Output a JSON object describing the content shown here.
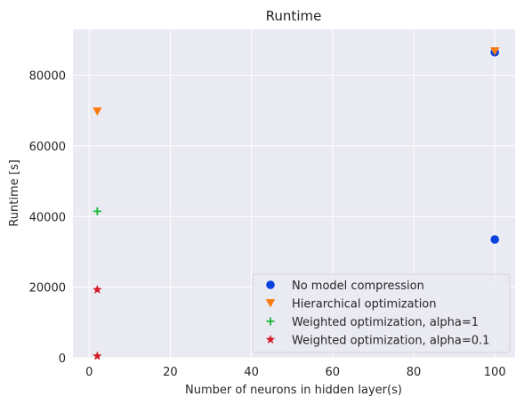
{
  "chart_data": {
    "type": "scatter",
    "title": "Runtime",
    "xlabel": "Number of neurons in hidden layer(s)",
    "ylabel": "Runtime [s]",
    "xlim": [
      -4,
      105
    ],
    "ylim": [
      0,
      93000
    ],
    "xticks": [
      0,
      20,
      40,
      60,
      80,
      100
    ],
    "yticks": [
      0,
      20000,
      40000,
      60000,
      80000
    ],
    "grid": true,
    "legend_position": "bottom-right",
    "background_color": "#eaeaf2",
    "grid_color": "#ffffff",
    "series": [
      {
        "name": "No model compression",
        "marker": "circle",
        "color": "#0a43dd",
        "points": [
          {
            "x": 100,
            "y": 86500
          },
          {
            "x": 100,
            "y": 33500
          }
        ]
      },
      {
        "name": "Hierarchical optimization",
        "marker": "triangle-down",
        "color": "#f97c0d",
        "points": [
          {
            "x": 2,
            "y": 69800
          },
          {
            "x": 100,
            "y": 86800
          }
        ]
      },
      {
        "name": "Weighted optimization, alpha=1",
        "marker": "plus",
        "color": "#1ab837",
        "points": [
          {
            "x": 2,
            "y": 41500
          }
        ]
      },
      {
        "name": "Weighted optimization, alpha=0.1",
        "marker": "star",
        "color": "#d11c26",
        "points": [
          {
            "x": 2,
            "y": 19300
          },
          {
            "x": 2,
            "y": 500
          }
        ]
      }
    ]
  }
}
